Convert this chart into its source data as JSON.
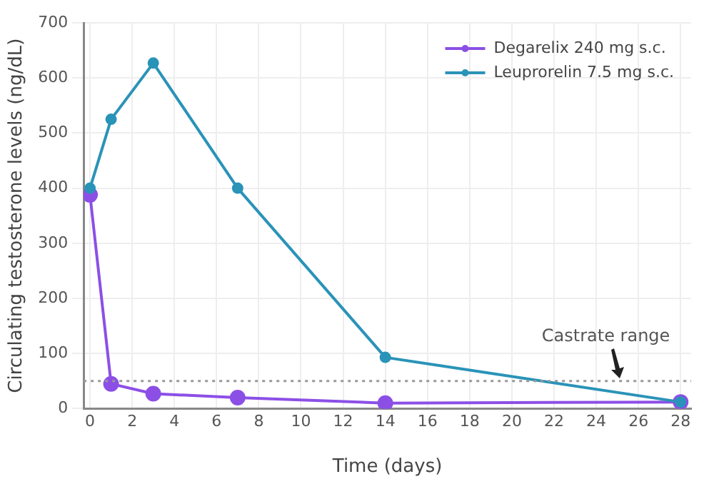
{
  "chart_data": {
    "type": "line",
    "xlabel": "Time (days)",
    "ylabel": "Circulating testosterone levels (ng/dL)",
    "x": [
      0,
      1,
      3,
      7,
      14,
      28
    ],
    "series": [
      {
        "name": "Degarelix 240 mg s.c.",
        "color": "#8c4fe6",
        "values": [
          388,
          45,
          27,
          20,
          10,
          12
        ]
      },
      {
        "name": "Leuprorelin 7.5 mg s.c.",
        "color": "#2a93b8",
        "values": [
          400,
          525,
          627,
          400,
          93,
          12
        ]
      }
    ],
    "xlim": [
      -0.3,
      28.5
    ],
    "xticks": [
      0,
      2,
      4,
      6,
      8,
      10,
      12,
      14,
      16,
      18,
      20,
      22,
      24,
      26,
      28
    ],
    "ylim": [
      0,
      700
    ],
    "yticks": [
      0,
      100,
      200,
      300,
      400,
      500,
      600,
      700
    ],
    "ref_lines": [
      {
        "axis": "y",
        "value": 50,
        "color": "#999999",
        "line_style": "dotted"
      }
    ],
    "annotations": [
      {
        "text": "Castrate range",
        "x": 25,
        "y": 50
      }
    ],
    "grid": true,
    "legend": "top right",
    "marker": "circle",
    "line_style": "solid"
  }
}
